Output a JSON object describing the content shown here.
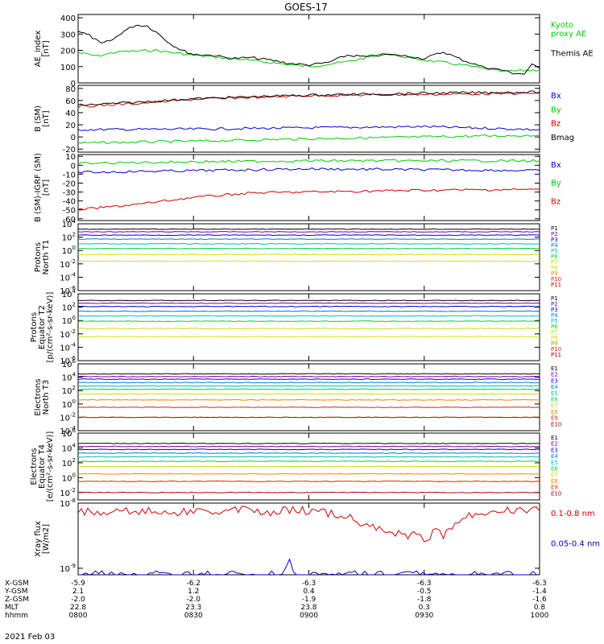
{
  "title": "GOES-17",
  "date_label": "2021 Feb 03",
  "colors": {
    "black": "#000000",
    "green": "#00cc00",
    "blue": "#0000cc",
    "red": "#cc0000",
    "P1": "#000000",
    "P2": "#7a0099",
    "P3": "#0000cc",
    "P4": "#0077dd",
    "P5": "#00bbbb",
    "P6": "#00cc44",
    "P7": "#ccdd00",
    "P8": "#dddd00",
    "P9": "#ee8800",
    "P10": "#dd2200",
    "P11": "#aa0000"
  },
  "x_axis": {
    "rows": [
      {
        "name": "X-GSM",
        "values": [
          "-5.9",
          "-6.2",
          "-6.3",
          "-6.3",
          "-6.3"
        ]
      },
      {
        "name": "Y-GSM",
        "values": [
          "2.1",
          "1.2",
          "0.4",
          "-0.5",
          "-1.4"
        ]
      },
      {
        "name": "Z-GSM",
        "values": [
          "-2.0",
          "-2.0",
          "-1.9",
          "-1.8",
          "-1.6"
        ]
      },
      {
        "name": "MLT",
        "values": [
          "22.8",
          "23.3",
          "23.8",
          "0.3",
          "0.8"
        ]
      },
      {
        "name": "hhmm",
        "values": [
          "0800",
          "0830",
          "0900",
          "0930",
          "1000"
        ]
      }
    ],
    "tick_minutes": [
      0,
      30,
      60,
      90,
      120
    ]
  },
  "chart_data": [
    {
      "type": "line",
      "ylabel": "AE_index\n[nT]",
      "ylim": [
        0,
        420
      ],
      "ticks": [
        "0",
        "100",
        "200",
        "300",
        "400"
      ],
      "tick_values": [
        0,
        100,
        200,
        300,
        400
      ],
      "series": [
        {
          "name": "Kyoto\nproxy AE",
          "color": "#00cc00",
          "x": [
            0,
            5,
            10,
            20,
            30,
            40,
            50,
            60,
            70,
            80,
            90,
            100,
            110,
            115,
            120
          ],
          "y": [
            185,
            165,
            190,
            200,
            170,
            150,
            125,
            100,
            130,
            180,
            140,
            110,
            70,
            75,
            80
          ]
        },
        {
          "name": "Themis AE",
          "color": "#000000",
          "x": [
            0,
            3,
            6,
            9,
            12,
            15,
            18,
            21,
            24,
            27,
            30,
            35,
            40,
            45,
            50,
            55,
            60,
            65,
            70,
            75,
            80,
            85,
            90,
            95,
            100,
            105,
            110,
            113,
            116,
            118,
            120
          ],
          "y": [
            320,
            290,
            240,
            265,
            320,
            355,
            350,
            300,
            240,
            200,
            175,
            170,
            150,
            155,
            140,
            120,
            110,
            125,
            170,
            160,
            175,
            165,
            150,
            190,
            140,
            100,
            80,
            60,
            55,
            110,
            90
          ]
        }
      ]
    },
    {
      "type": "line",
      "ylabel": "B (SM)\n[nT]",
      "ylim": [
        -25,
        85
      ],
      "ticks": [
        "-20",
        "0",
        "20",
        "40",
        "60",
        "80"
      ],
      "tick_values": [
        -20,
        0,
        20,
        40,
        60,
        80
      ],
      "series": [
        {
          "name": "Bx",
          "color": "#0000cc",
          "x": [
            0,
            30,
            60,
            90,
            120
          ],
          "y": [
            12,
            13,
            15,
            17,
            12
          ]
        },
        {
          "name": "By",
          "color": "#00cc00",
          "x": [
            0,
            30,
            60,
            90,
            120
          ],
          "y": [
            -10,
            -7,
            -3,
            0,
            3
          ]
        },
        {
          "name": "Bz",
          "color": "#cc0000",
          "x": [
            0,
            15,
            30,
            60,
            90,
            120
          ],
          "y": [
            50,
            55,
            62,
            68,
            70,
            72
          ]
        },
        {
          "name": "Bmag",
          "color": "#000000",
          "x": [
            0,
            15,
            30,
            60,
            90,
            120
          ],
          "y": [
            52,
            57,
            63,
            69,
            72,
            74
          ]
        }
      ]
    },
    {
      "type": "line",
      "ylabel": "B (SM)-IGRF (SM)\n[nT]",
      "ylim": [
        -62,
        12
      ],
      "ticks": [
        "-60",
        "-50",
        "-40",
        "-30",
        "-20",
        "-10",
        "0",
        "10"
      ],
      "tick_values": [
        -60,
        -50,
        -40,
        -30,
        -20,
        -10,
        0,
        10
      ],
      "series": [
        {
          "name": "Bx",
          "color": "#0000cc",
          "x": [
            0,
            30,
            60,
            90,
            120
          ],
          "y": [
            -8,
            -6,
            -4,
            -5,
            -6
          ]
        },
        {
          "name": "By",
          "color": "#00cc00",
          "x": [
            0,
            30,
            60,
            90,
            120
          ],
          "y": [
            2,
            4,
            5,
            5,
            5
          ]
        },
        {
          "name": "Bz",
          "color": "#cc0000",
          "x": [
            0,
            15,
            30,
            45,
            60,
            90,
            120
          ],
          "y": [
            -50,
            -44,
            -36,
            -31,
            -30,
            -28,
            -27
          ]
        }
      ]
    },
    {
      "type": "line",
      "log": true,
      "ylabel": "Protons\nNorth T1",
      "ylim": [
        -6,
        4
      ],
      "ticks": [
        "10^4",
        "10^2",
        "10^0",
        "10^-2",
        "10^-4",
        "10^-6"
      ],
      "tick_values": [
        4,
        2,
        0,
        -2,
        -4,
        -6
      ],
      "series": [
        {
          "name": "P1",
          "color": "#000000",
          "y": [
            3.2,
            3.2
          ]
        },
        {
          "name": "P2",
          "color": "#7a0099",
          "y": [
            2.8,
            2.8
          ]
        },
        {
          "name": "P3",
          "color": "#0000cc",
          "y": [
            2.3,
            2.3
          ]
        },
        {
          "name": "P4",
          "color": "#0077dd",
          "y": [
            1.7,
            1.7
          ]
        },
        {
          "name": "P5",
          "color": "#00bbbb",
          "y": [
            1.0,
            1.0
          ]
        },
        {
          "name": "P6",
          "color": "#00cc44",
          "y": [
            0.3,
            0.3
          ]
        },
        {
          "name": "P7",
          "color": "#ccdd00",
          "y": [
            -0.6,
            -0.6
          ]
        },
        {
          "name": "P8",
          "color": "#dddd00",
          "y": [
            -1.6,
            -1.6
          ]
        },
        {
          "name": "P9",
          "color": "#ee8800",
          "y": []
        },
        {
          "name": "P10",
          "color": "#dd2200",
          "y": []
        },
        {
          "name": "P11",
          "color": "#aa0000",
          "y": []
        }
      ]
    },
    {
      "type": "line",
      "log": true,
      "ylabel": "Protons\nEquator T2\n[p/(cm²-s-sr-keV)]",
      "ylim": [
        -6,
        4
      ],
      "ticks": [
        "10^4",
        "10^2",
        "10^0",
        "10^-2",
        "10^-4",
        "10^-6"
      ],
      "tick_values": [
        4,
        2,
        0,
        -2,
        -4,
        -6
      ],
      "series": [
        {
          "name": "P1",
          "color": "#000000",
          "y": [
            3.0,
            3.0
          ]
        },
        {
          "name": "P2",
          "color": "#7a0099",
          "y": [
            2.6,
            2.6
          ]
        },
        {
          "name": "P3",
          "color": "#0000cc",
          "y": [
            2.1,
            2.1
          ]
        },
        {
          "name": "P4",
          "color": "#0077dd",
          "y": [
            1.4,
            1.4
          ]
        },
        {
          "name": "P5",
          "color": "#00bbbb",
          "y": [
            0.7,
            0.7
          ]
        },
        {
          "name": "P6",
          "color": "#00cc44",
          "y": [
            -0.1,
            -0.1
          ]
        },
        {
          "name": "P7",
          "color": "#ccdd00",
          "y": [
            -1.2,
            -1.2
          ]
        },
        {
          "name": "P8",
          "color": "#dddd00",
          "y": [
            -2.4,
            -2.4
          ]
        },
        {
          "name": "P9",
          "color": "#ee8800",
          "y": []
        },
        {
          "name": "P10",
          "color": "#dd2200",
          "y": []
        },
        {
          "name": "P11",
          "color": "#aa0000",
          "y": []
        }
      ]
    },
    {
      "type": "line",
      "log": true,
      "ylabel": "Electrons\nNorth T3",
      "ylim": [
        -4,
        6
      ],
      "ticks": [
        "10^6",
        "10^4",
        "10^2",
        "10^0",
        "10^-2",
        "10^-4"
      ],
      "tick_values": [
        6,
        4,
        2,
        0,
        -2,
        -4
      ],
      "series": [
        {
          "name": "E1",
          "color": "#000000",
          "y": [
            4.5,
            4.5
          ]
        },
        {
          "name": "E2",
          "color": "#7a0099",
          "y": [
            4.1,
            4.1
          ]
        },
        {
          "name": "E3",
          "color": "#0000cc",
          "y": [
            3.7,
            3.7
          ]
        },
        {
          "name": "E4",
          "color": "#0077dd",
          "y": [
            3.2,
            3.2
          ]
        },
        {
          "name": "E5",
          "color": "#00bbbb",
          "y": [
            2.7,
            2.7
          ]
        },
        {
          "name": "E6",
          "color": "#00cc44",
          "y": [
            2.2,
            2.2
          ]
        },
        {
          "name": "E7",
          "color": "#ccdd00",
          "y": [
            1.5,
            1.5
          ]
        },
        {
          "name": "E8",
          "color": "#ee8800",
          "y": [
            0.6,
            0.6
          ]
        },
        {
          "name": "E9",
          "color": "#dd2200",
          "y": [
            -0.5,
            -0.5
          ]
        },
        {
          "name": "E10",
          "color": "#aa0000",
          "y": [
            -2.0,
            -2.0
          ]
        }
      ]
    },
    {
      "type": "line",
      "log": true,
      "ylabel": "Electrons\nEquator T4\n[e/(cm²-s-sr-keV)]",
      "ylim": [
        -3,
        6
      ],
      "ticks": [
        "10^6",
        "10^4",
        "10^2",
        "10^0",
        "10^-2"
      ],
      "tick_values": [
        6,
        4,
        2,
        0,
        -2
      ],
      "series": [
        {
          "name": "E1",
          "color": "#000000",
          "y": [
            4.6,
            4.6
          ]
        },
        {
          "name": "E2",
          "color": "#7a0099",
          "y": [
            4.2,
            4.2
          ]
        },
        {
          "name": "E3",
          "color": "#0000cc",
          "y": [
            3.8,
            3.8
          ]
        },
        {
          "name": "E4",
          "color": "#0077dd",
          "y": [
            3.3,
            3.3
          ]
        },
        {
          "name": "E5",
          "color": "#00bbbb",
          "y": [
            2.8,
            2.8
          ]
        },
        {
          "name": "E6",
          "color": "#00cc44",
          "y": [
            2.2,
            2.2
          ]
        },
        {
          "name": "E7",
          "color": "#ccdd00",
          "y": [
            1.5,
            1.5
          ]
        },
        {
          "name": "E8",
          "color": "#ee8800",
          "y": [
            0.5,
            0.5
          ]
        },
        {
          "name": "E9",
          "color": "#dd2200",
          "y": [
            -0.5,
            -0.5
          ]
        },
        {
          "name": "E10",
          "color": "#aa0000",
          "y": [
            -2.0,
            -2.0
          ]
        }
      ]
    },
    {
      "type": "line",
      "log": true,
      "ylabel": "Xray flux\n[W/m2]",
      "ylim": [
        -9.1,
        -8
      ],
      "ticks": [
        "10^-8",
        "10^-9"
      ],
      "tick_values": [
        -8,
        -9
      ],
      "series": [
        {
          "name": "0.1-0.8 nm",
          "color": "#cc0000",
          "x": [
            0,
            5,
            10,
            15,
            20,
            25,
            30,
            35,
            40,
            45,
            50,
            55,
            60,
            65,
            70,
            75,
            80,
            85,
            88,
            90,
            93,
            95,
            98,
            100,
            105,
            110,
            115,
            120
          ],
          "y": [
            -8.12,
            -8.15,
            -8.1,
            -8.14,
            -8.12,
            -8.16,
            -8.1,
            -8.13,
            -8.12,
            -8.1,
            -8.14,
            -8.1,
            -8.12,
            -8.15,
            -8.2,
            -8.35,
            -8.4,
            -8.5,
            -8.45,
            -8.6,
            -8.4,
            -8.5,
            -8.3,
            -8.2,
            -8.15,
            -8.12,
            -8.1,
            -8.12
          ]
        },
        {
          "name": "0.05-0.4 nm",
          "color": "#0000cc",
          "x": [
            0,
            1,
            2,
            52,
            53,
            55,
            56,
            120
          ],
          "y": [
            -9.1,
            -9.06,
            -9.1,
            -9.1,
            -9.1,
            -8.9,
            -9.1,
            -9.1
          ]
        }
      ]
    }
  ]
}
